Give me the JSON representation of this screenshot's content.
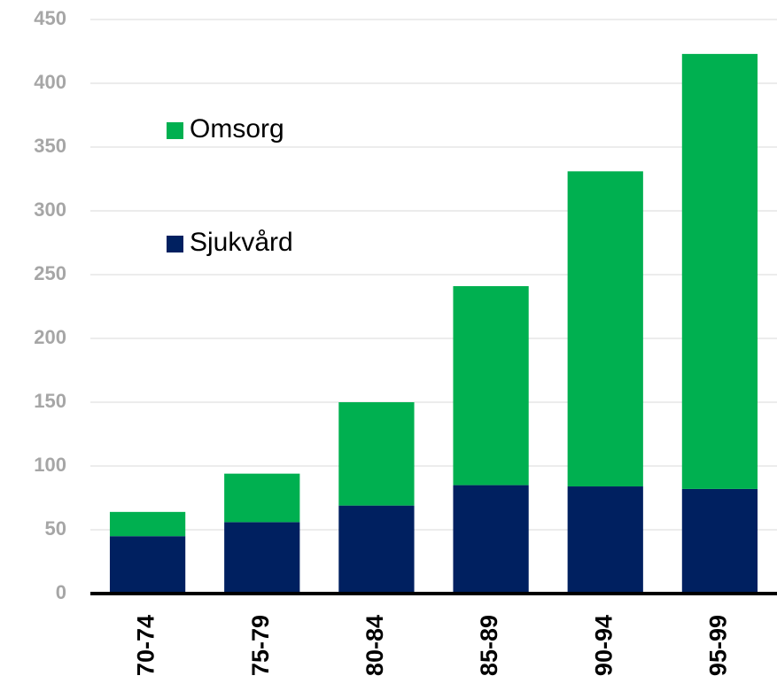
{
  "chart_data": {
    "type": "stacked_bar",
    "categories": [
      "70-74",
      "75-79",
      "80-84",
      "85-89",
      "90-94",
      "95-99"
    ],
    "series": [
      {
        "name": "Sjukvård",
        "color": "#002060",
        "values": [
          45,
          56,
          69,
          85,
          84,
          82
        ]
      },
      {
        "name": "Omsorg",
        "color": "#00b050",
        "values": [
          19,
          38,
          81,
          156,
          247,
          341
        ]
      }
    ],
    "ylim": [
      0,
      450
    ],
    "yticks": [
      0,
      50,
      100,
      150,
      200,
      250,
      300,
      350,
      400,
      450
    ],
    "grid": true,
    "legend": "upper left"
  }
}
